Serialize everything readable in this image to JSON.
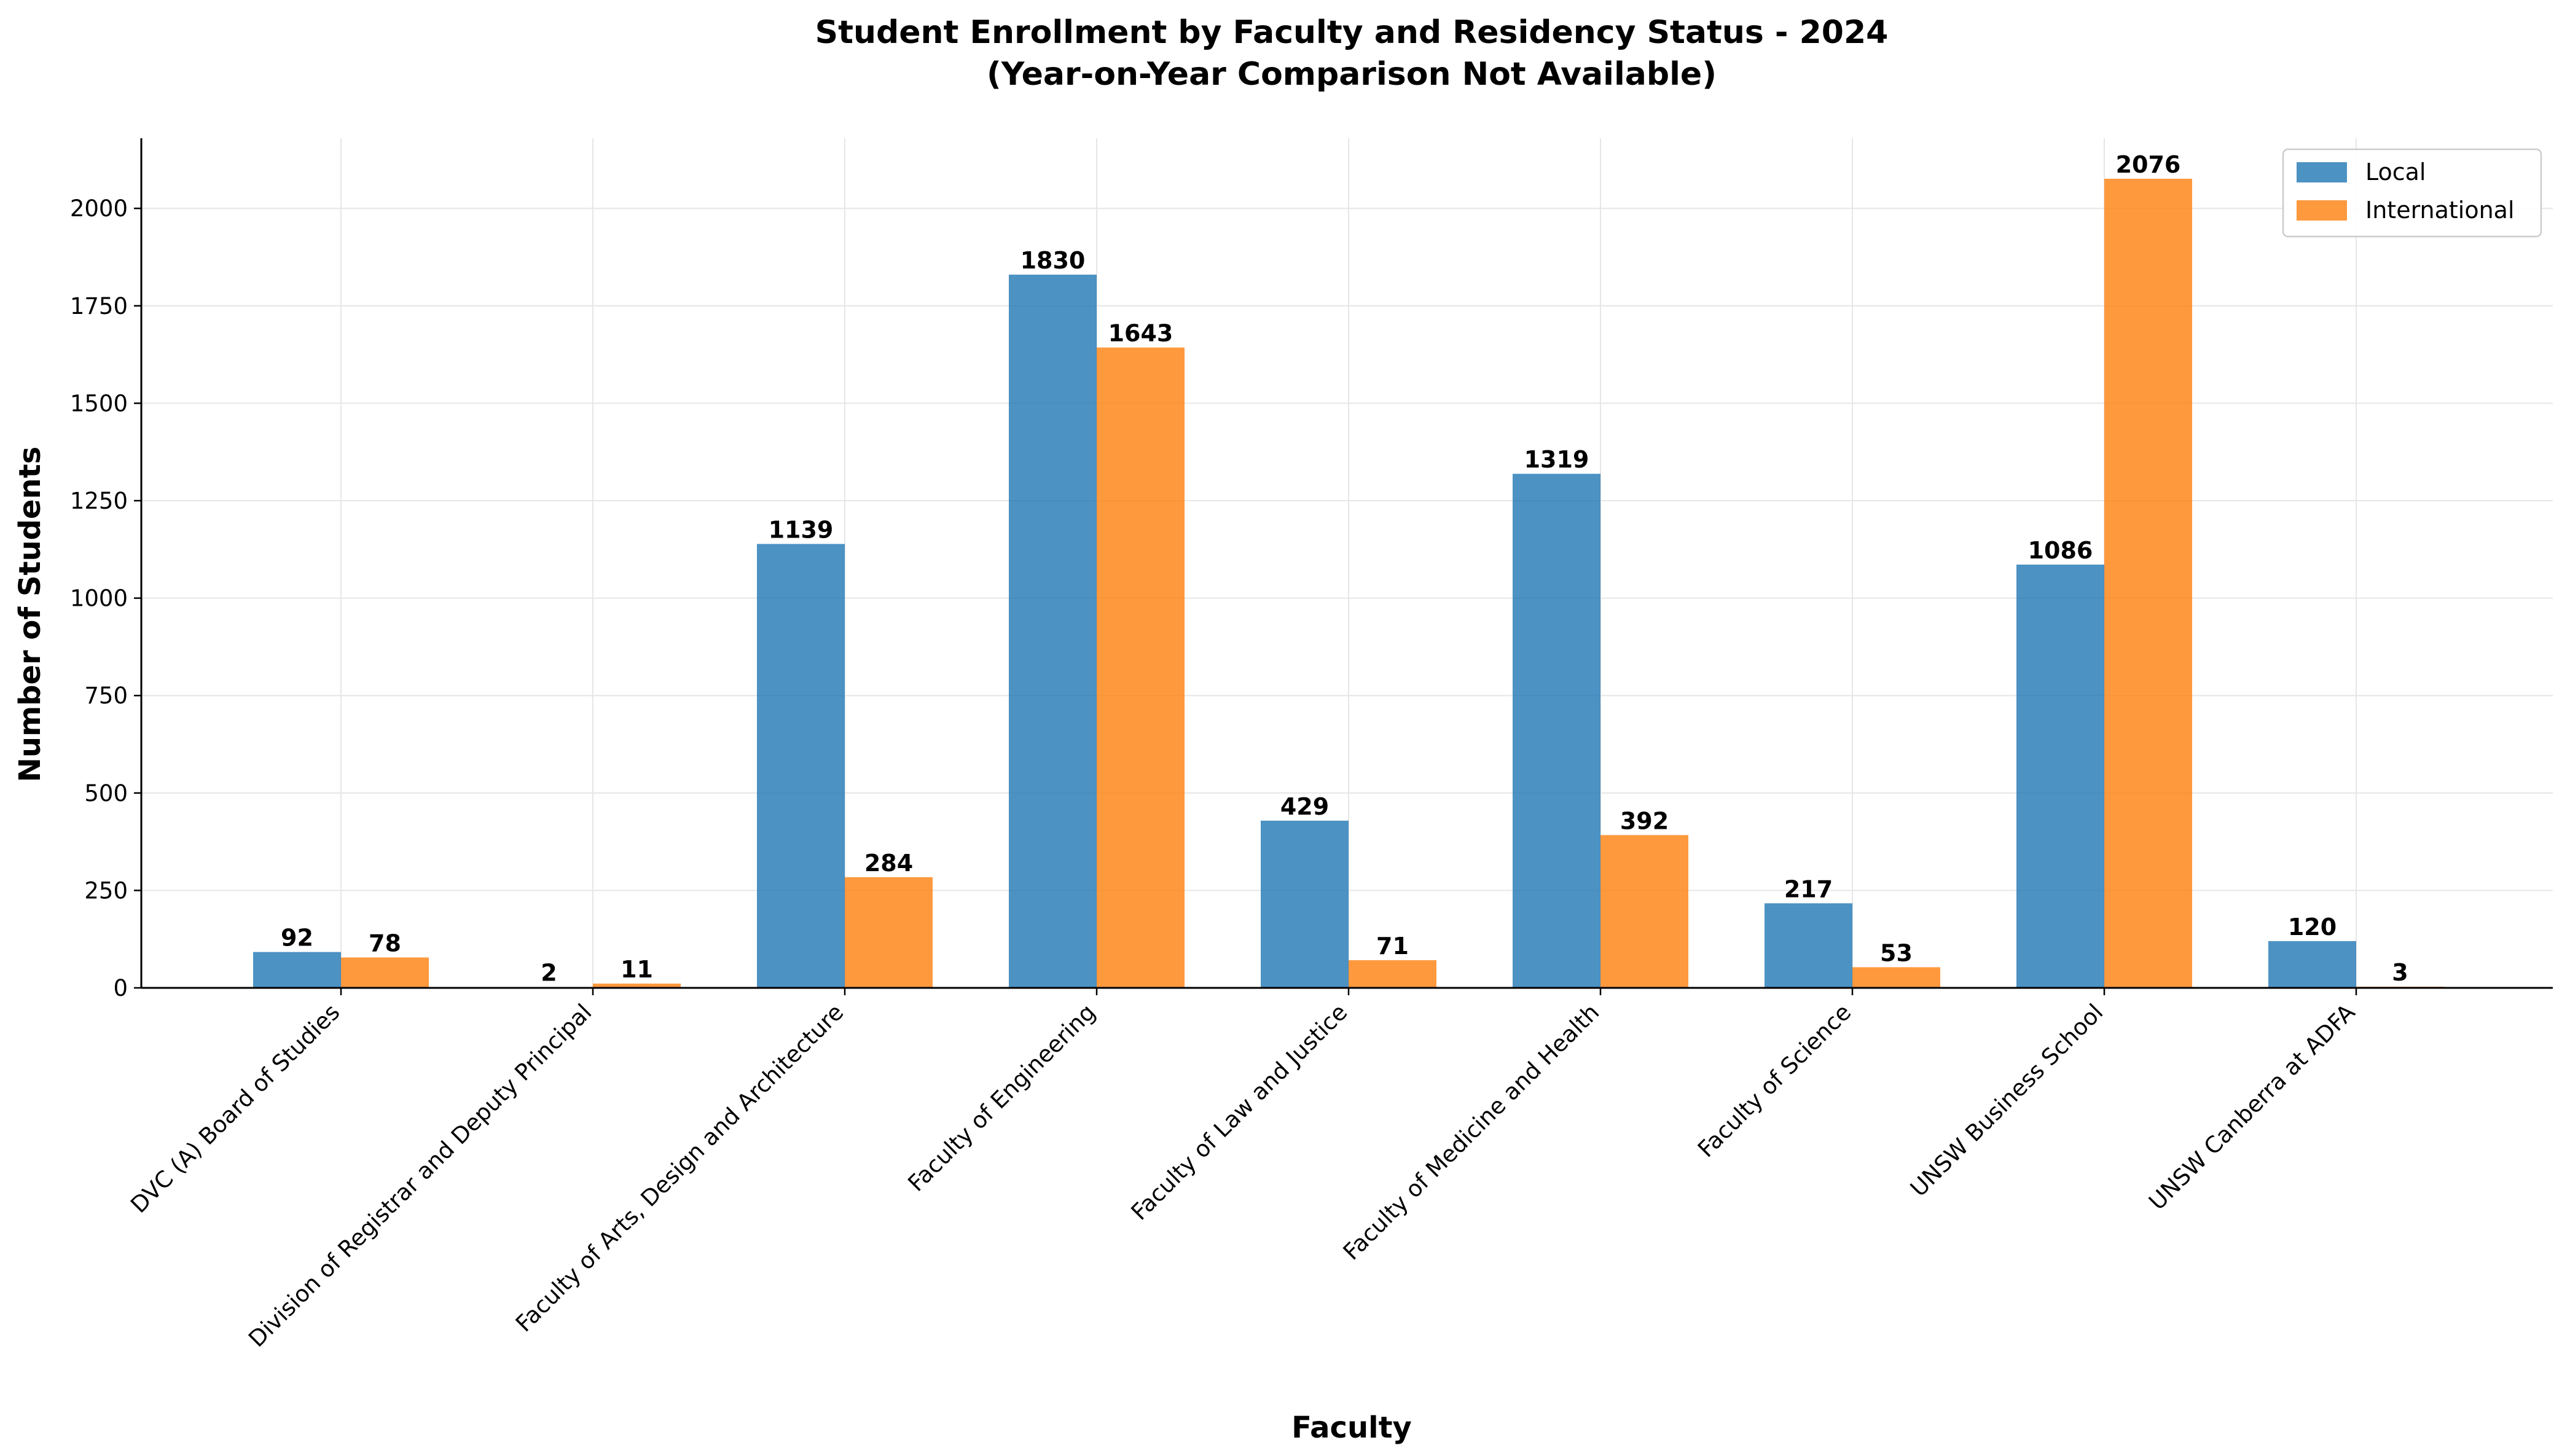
{
  "chart_data": {
    "type": "bar",
    "title": "Student Enrollment by Faculty and Residency Status - 2024",
    "subtitle": "(Year-on-Year Comparison Not Available)",
    "xlabel": "Faculty",
    "ylabel": "Number of Students",
    "categories": [
      "DVC (A) Board of Studies",
      "Division of Registrar and Deputy Principal",
      "Faculty of Arts, Design and Architecture",
      "Faculty of Engineering",
      "Faculty of Law and Justice",
      "Faculty of Medicine and Health",
      "Faculty of Science",
      "UNSW Business School",
      "UNSW Canberra at ADFA"
    ],
    "series": [
      {
        "name": "Local",
        "color": "#1f77b4",
        "values": [
          92,
          2,
          1139,
          1830,
          429,
          1319,
          217,
          1086,
          120
        ]
      },
      {
        "name": "International",
        "color": "#ff7f0e",
        "values": [
          78,
          11,
          284,
          1643,
          71,
          392,
          53,
          2076,
          3
        ]
      }
    ],
    "ylim": [
      0,
      2180
    ],
    "yticks": [
      0,
      250,
      500,
      750,
      1000,
      1250,
      1500,
      1750,
      2000
    ],
    "grid": true,
    "legend_position": "top-right"
  }
}
